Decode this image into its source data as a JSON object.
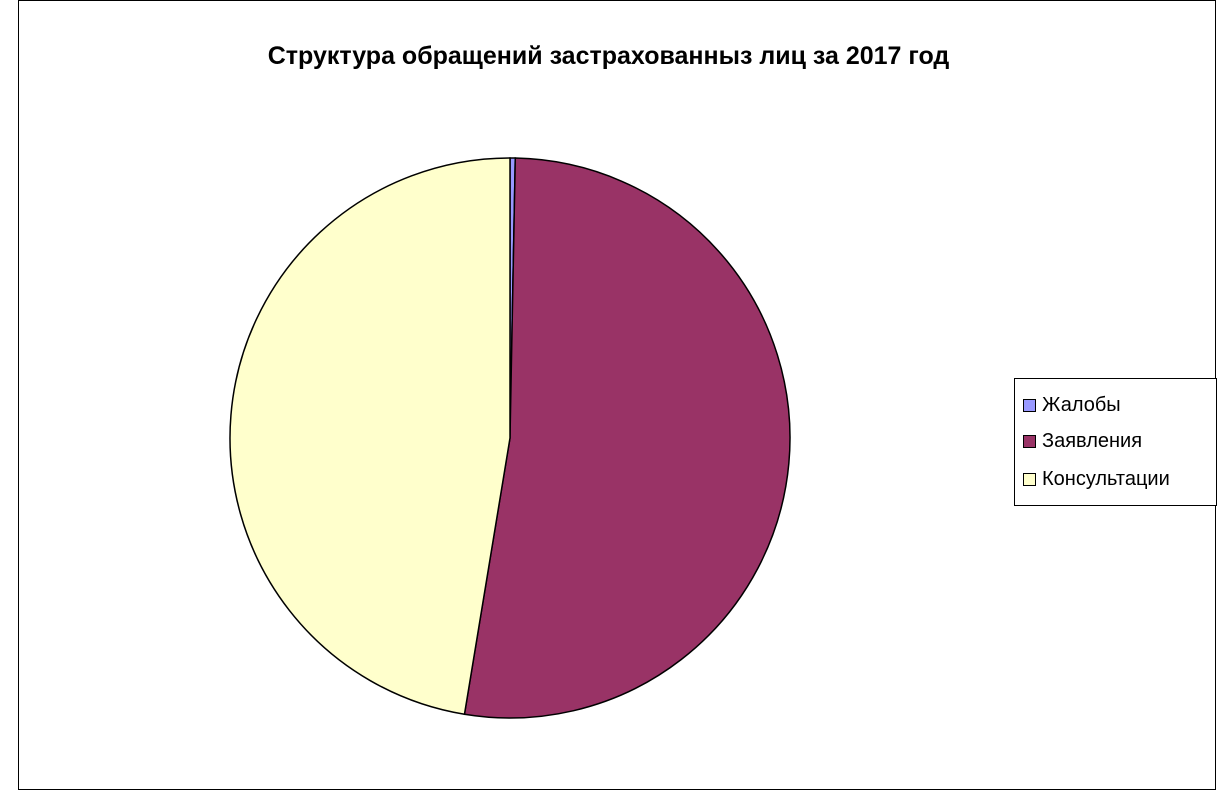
{
  "chart_data": {
    "type": "pie",
    "title": "Структура обращений застрахованныз лиц за 2017 год",
    "categories": [
      "Жалобы",
      "Заявления",
      "Консультации"
    ],
    "values": [
      0.3,
      52.3,
      47.4
    ],
    "colors": [
      "#9999ff",
      "#993366",
      "#ffffcc"
    ],
    "legend_position": "right"
  }
}
